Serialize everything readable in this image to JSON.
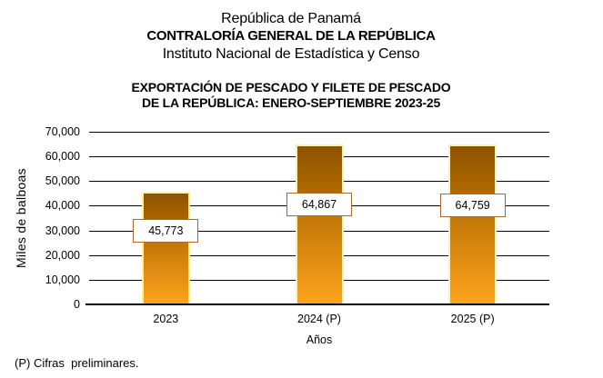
{
  "header": {
    "line1": "República de Panamá",
    "line2": "CONTRALORÍA GENERAL DE LA REPÚBLICA",
    "line3": "Instituto  Nacional de Estadística y Censo"
  },
  "chart_data": {
    "type": "bar",
    "title": "EXPORTACIÓN DE PESCADO Y FILETE DE PESCADO DE LA REPÚBLICA: ENERO-SEPTIEMBRE 2023-25",
    "title_lines": [
      "EXPORTACIÓN DE PESCADO Y FILETE DE PESCADO",
      "DE LA REPÚBLICA: ENERO-SEPTIEMBRE 2023-25"
    ],
    "categories": [
      "2023",
      "2024 (P)",
      "2025 (P)"
    ],
    "values": [
      45773,
      64867,
      64759
    ],
    "value_labels": [
      "45,773",
      "64,867",
      "64,759"
    ],
    "xlabel": "Años",
    "ylabel": "Miles de balboas",
    "ylim": [
      0,
      70000
    ],
    "ytick_step": 10000,
    "ytick_labels": [
      "0",
      "10,000",
      "20,000",
      "30,000",
      "40,000",
      "50,000",
      "60,000",
      "70,000"
    ],
    "grid": true,
    "legend": false,
    "colors": {
      "bar_gradient_top": "#8E5200",
      "bar_gradient_bottom": "#FFA41C",
      "bar_border": "#FFF1A2",
      "value_box_border": "#A9682C",
      "gridline": "#000000",
      "text": "#000000"
    }
  },
  "footnote": "(P) Cifras  preliminares."
}
